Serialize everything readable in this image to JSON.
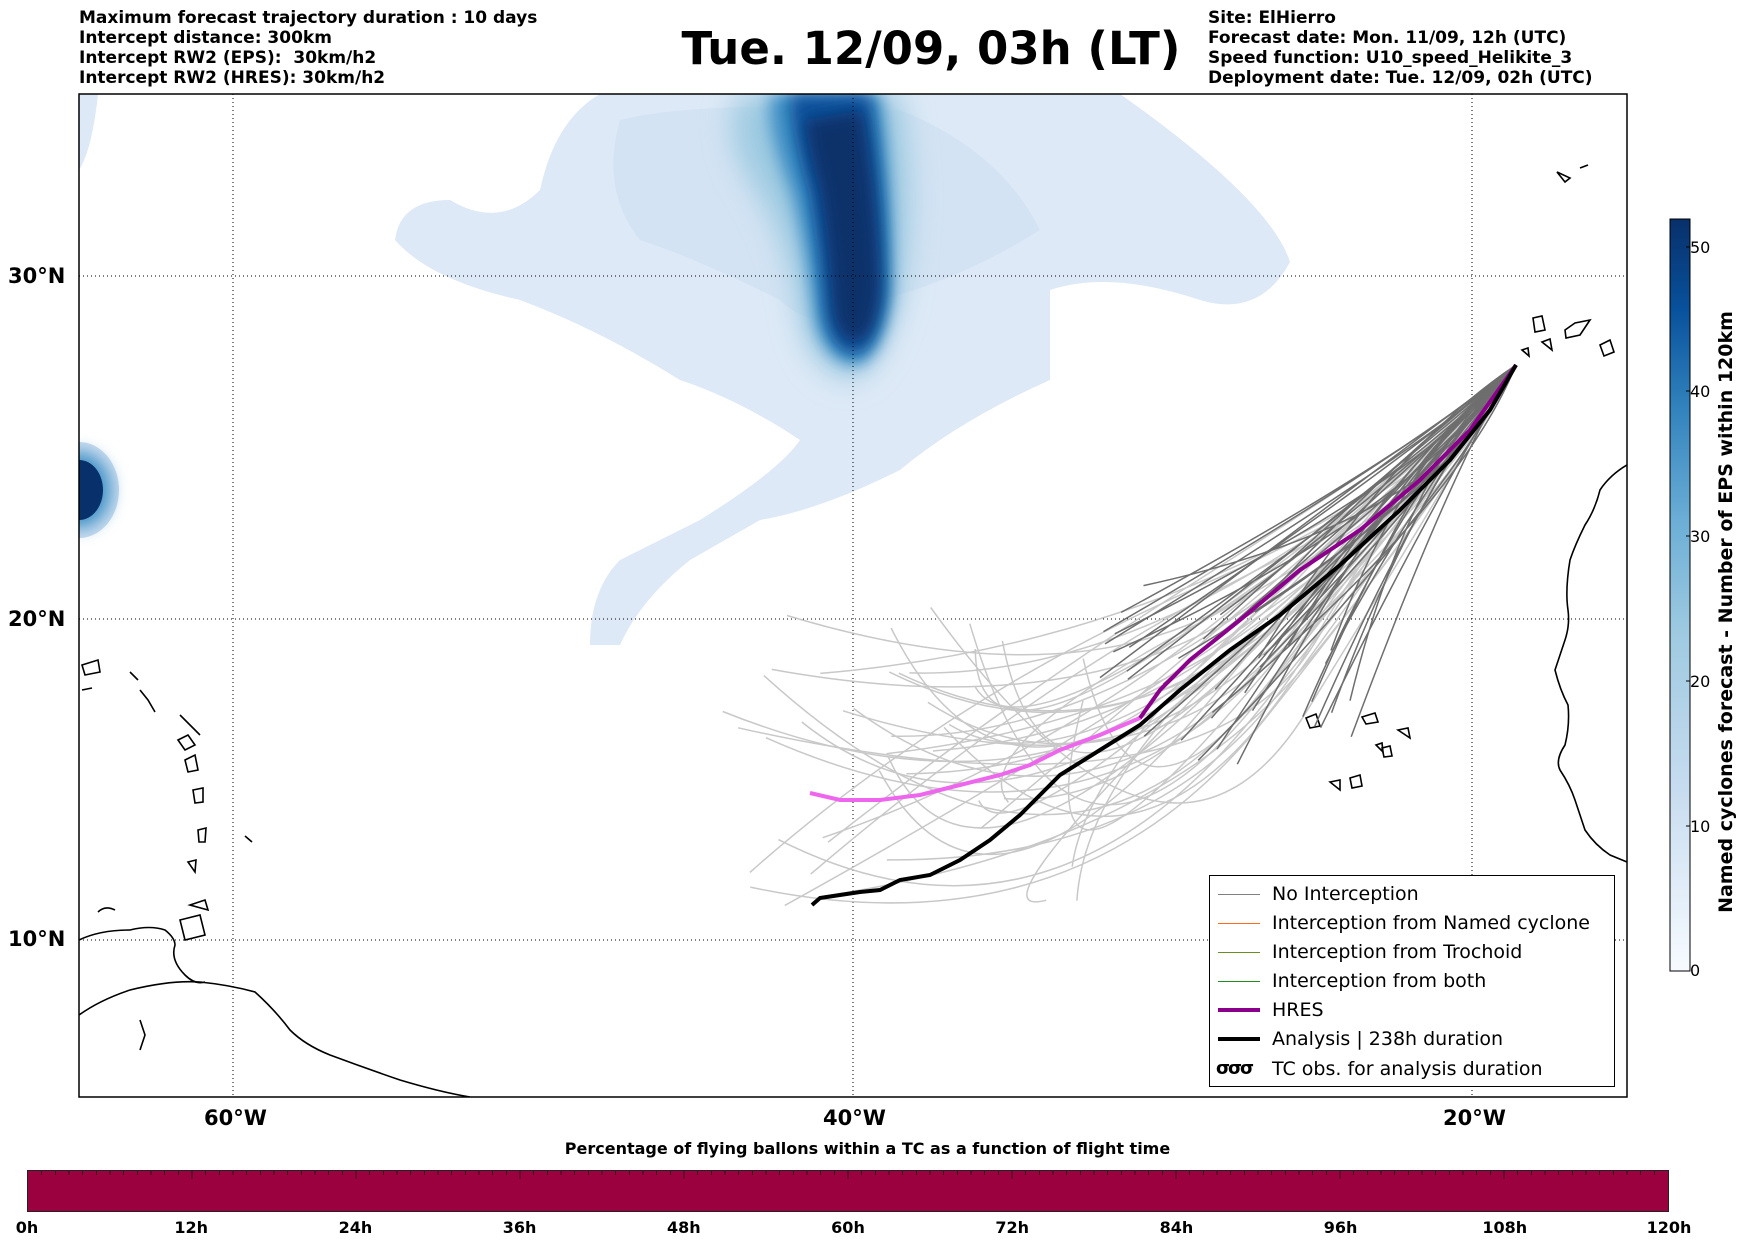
{
  "header": {
    "left_lines": [
      "Maximum forecast trajectory duration : 10 days",
      "Intercept distance: 300km",
      "Intercept RW2 (EPS):  30km/h2",
      "Intercept RW2 (HRES): 30km/h2"
    ],
    "title": "Tue. 12/09, 03h (LT)",
    "right_lines": [
      "Site: ElHierro",
      "Forecast date: Mon. 11/09, 12h (UTC)",
      "Speed function: U10_speed_Helikite_3",
      "Deployment date: Tue. 12/09, 02h (UTC)"
    ]
  },
  "map": {
    "lat_labels": [
      "30°N",
      "20°N",
      "10°N"
    ],
    "lon_labels": [
      "60°W",
      "40°W",
      "20°W"
    ],
    "gridline_style": "dotted",
    "colors": {
      "cyclone_shades": [
        "#dde9f6",
        "#c9dcef",
        "#9ecae1",
        "#6baed6",
        "#3182bd",
        "#08519c",
        "#08306b"
      ],
      "ens_no_interception_light": "#c8c8c8",
      "ens_no_interception_dark": "#6e6e6e",
      "hres": "#8b008b",
      "hres_early": "#ee66ee",
      "analysis": "#000000",
      "coast": "#000000"
    }
  },
  "colorbar": {
    "title": "Named cyclones forecast - Number of EPS within 120km",
    "ticks": [
      "50",
      "40",
      "30",
      "20",
      "10",
      "0"
    ],
    "max": 52
  },
  "legend": {
    "items": [
      {
        "label": "No Interception",
        "color": "#808080",
        "width": 1.5
      },
      {
        "label": "Interception from Named cyclone",
        "color": "#ff6a1e",
        "width": 1.5
      },
      {
        "label": "Interception from Trochoid",
        "color": "#6b8e23",
        "width": 1.5
      },
      {
        "label": "Interception from both",
        "color": "#228b22",
        "width": 1.5
      },
      {
        "label": "HRES",
        "color": "#8b008b",
        "width": 4
      },
      {
        "label": "Analysis | 238h duration",
        "color": "#000000",
        "width": 4
      }
    ],
    "tc_symbol": "σσσ",
    "tc_label": "TC obs. for analysis duration"
  },
  "bottom_bar": {
    "title": "Percentage of flying ballons within a TC as a function of flight time",
    "fill_color": "#9b003f",
    "time_labels": [
      "0h",
      "12h",
      "24h",
      "36h",
      "48h",
      "60h",
      "72h",
      "84h",
      "96h",
      "108h",
      "120h"
    ]
  }
}
